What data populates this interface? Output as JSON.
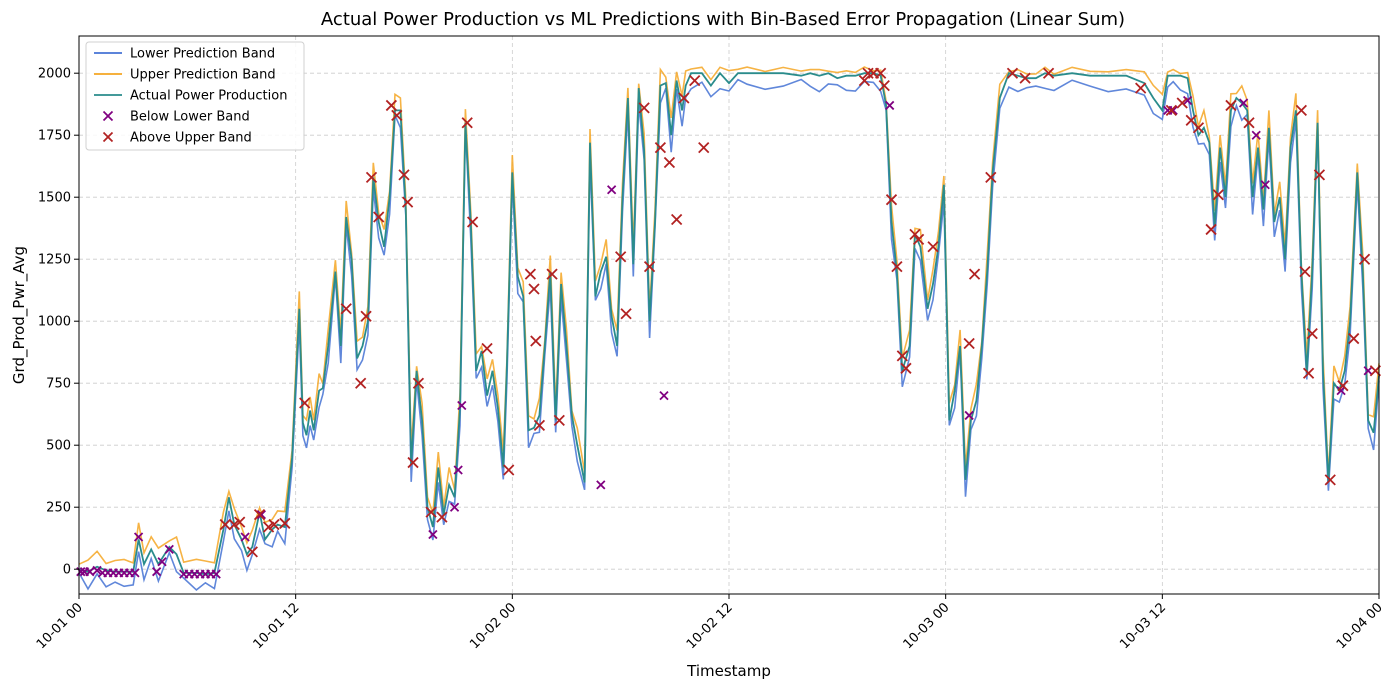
{
  "chart_data": {
    "type": "line",
    "title": "Actual Power Production vs ML Predictions with Bin-Based Error Propagation (Linear Sum)",
    "xlabel": "Timestamp",
    "ylabel": "Grd_Prod_Pwr_Avg",
    "x_unit": "hours since 10-01 00",
    "xlim": [
      0,
      72
    ],
    "ylim": [
      -100,
      2150
    ],
    "x_ticks": [
      {
        "value": 0,
        "label": "10-01 00"
      },
      {
        "value": 12,
        "label": "10-01 12"
      },
      {
        "value": 24,
        "label": "10-02 00"
      },
      {
        "value": 36,
        "label": "10-02 12"
      },
      {
        "value": 48,
        "label": "10-03 00"
      },
      {
        "value": 60,
        "label": "10-03 12"
      },
      {
        "value": 72,
        "label": "10-04 00"
      }
    ],
    "y_ticks": [
      0,
      250,
      500,
      750,
      1000,
      1250,
      1500,
      1750,
      2000
    ],
    "grid": true,
    "legend_position": "top-left",
    "colors": {
      "lower_band": "#4472d4",
      "upper_band": "#f5a623",
      "actual": "#2a8c8c",
      "below_marker": "#800080",
      "above_marker": "#b22222"
    },
    "actual_points": [
      [
        0,
        0
      ],
      [
        0.5,
        -10
      ],
      [
        1,
        10
      ],
      [
        1.5,
        -5
      ],
      [
        2,
        -10
      ],
      [
        2.5,
        -10
      ],
      [
        3,
        -10
      ],
      [
        3.3,
        120
      ],
      [
        3.6,
        20
      ],
      [
        4,
        80
      ],
      [
        4.4,
        20
      ],
      [
        5,
        90
      ],
      [
        5.4,
        60
      ],
      [
        5.8,
        -15
      ],
      [
        6.5,
        -15
      ],
      [
        7,
        -20
      ],
      [
        7.5,
        -15
      ],
      [
        8,
        160
      ],
      [
        8.3,
        290
      ],
      [
        8.6,
        180
      ],
      [
        9,
        120
      ],
      [
        9.3,
        60
      ],
      [
        9.6,
        90
      ],
      [
        10,
        230
      ],
      [
        10.3,
        120
      ],
      [
        10.7,
        160
      ],
      [
        11,
        180
      ],
      [
        11.4,
        170
      ],
      [
        11.8,
        450
      ],
      [
        12.2,
        1050
      ],
      [
        12.4,
        590
      ],
      [
        12.6,
        540
      ],
      [
        12.8,
        640
      ],
      [
        13,
        560
      ],
      [
        13.3,
        720
      ],
      [
        13.5,
        730
      ],
      [
        13.8,
        900
      ],
      [
        14.2,
        1200
      ],
      [
        14.5,
        900
      ],
      [
        14.8,
        1420
      ],
      [
        15.1,
        1250
      ],
      [
        15.4,
        850
      ],
      [
        15.7,
        900
      ],
      [
        16,
        1000
      ],
      [
        16.3,
        1580
      ],
      [
        16.6,
        1400
      ],
      [
        16.9,
        1300
      ],
      [
        17.2,
        1500
      ],
      [
        17.5,
        1850
      ],
      [
        17.8,
        1850
      ],
      [
        18.1,
        1450
      ],
      [
        18.4,
        420
      ],
      [
        18.7,
        800
      ],
      [
        19,
        600
      ],
      [
        19.3,
        250
      ],
      [
        19.6,
        170
      ],
      [
        19.9,
        410
      ],
      [
        20.2,
        220
      ],
      [
        20.5,
        340
      ],
      [
        20.8,
        290
      ],
      [
        21.1,
        650
      ],
      [
        21.4,
        1800
      ],
      [
        21.7,
        1400
      ],
      [
        22,
        800
      ],
      [
        22.3,
        880
      ],
      [
        22.6,
        700
      ],
      [
        22.9,
        800
      ],
      [
        23.2,
        650
      ],
      [
        23.5,
        410
      ],
      [
        23.7,
        820
      ],
      [
        24,
        1600
      ],
      [
        24.3,
        1180
      ],
      [
        24.6,
        1100
      ],
      [
        24.9,
        560
      ],
      [
        25.2,
        570
      ],
      [
        25.5,
        620
      ],
      [
        25.8,
        900
      ],
      [
        26.1,
        1200
      ],
      [
        26.4,
        600
      ],
      [
        26.7,
        1150
      ],
      [
        27,
        900
      ],
      [
        27.3,
        620
      ],
      [
        27.6,
        500
      ],
      [
        28,
        350
      ],
      [
        28.3,
        1720
      ],
      [
        28.6,
        1100
      ],
      [
        28.9,
        1200
      ],
      [
        29.2,
        1260
      ],
      [
        29.5,
        1020
      ],
      [
        29.8,
        900
      ],
      [
        30.1,
        1500
      ],
      [
        30.4,
        1900
      ],
      [
        30.7,
        1230
      ],
      [
        31,
        1940
      ],
      [
        31.3,
        1690
      ],
      [
        31.6,
        1000
      ],
      [
        31.9,
        1400
      ],
      [
        32.2,
        1950
      ],
      [
        32.5,
        1960
      ],
      [
        32.8,
        1750
      ],
      [
        33.1,
        1970
      ],
      [
        33.4,
        1850
      ],
      [
        33.6,
        1950
      ],
      [
        33.9,
        2000
      ],
      [
        34.5,
        2000
      ],
      [
        35,
        1950
      ],
      [
        35.5,
        2000
      ],
      [
        36,
        1960
      ],
      [
        36.5,
        2000
      ],
      [
        37,
        2000
      ],
      [
        38,
        2000
      ],
      [
        39,
        2000
      ],
      [
        40,
        1990
      ],
      [
        40.5,
        2000
      ],
      [
        41,
        1990
      ],
      [
        41.5,
        2000
      ],
      [
        42,
        1980
      ],
      [
        42.5,
        1990
      ],
      [
        43,
        1990
      ],
      [
        43.5,
        2000
      ],
      [
        44,
        2000
      ],
      [
        44.4,
        1990
      ],
      [
        44.7,
        1870
      ],
      [
        45,
        1400
      ],
      [
        45.3,
        1200
      ],
      [
        45.6,
        800
      ],
      [
        46,
        900
      ],
      [
        46.3,
        1350
      ],
      [
        46.6,
        1300
      ],
      [
        47,
        1050
      ],
      [
        47.3,
        1150
      ],
      [
        47.6,
        1300
      ],
      [
        47.9,
        1550
      ],
      [
        48.2,
        600
      ],
      [
        48.5,
        720
      ],
      [
        48.8,
        900
      ],
      [
        49.1,
        360
      ],
      [
        49.4,
        600
      ],
      [
        49.7,
        680
      ],
      [
        50,
        900
      ],
      [
        50.3,
        1200
      ],
      [
        50.6,
        1600
      ],
      [
        51,
        1900
      ],
      [
        51.5,
        2000
      ],
      [
        52,
        1990
      ],
      [
        52.5,
        1980
      ],
      [
        53,
        1980
      ],
      [
        53.5,
        2000
      ],
      [
        54,
        1990
      ],
      [
        55,
        2000
      ],
      [
        56,
        1990
      ],
      [
        57,
        1990
      ],
      [
        58,
        1990
      ],
      [
        59,
        1960
      ],
      [
        59.5,
        1900
      ],
      [
        60,
        1850
      ],
      [
        60.3,
        1990
      ],
      [
        60.6,
        1990
      ],
      [
        61,
        1990
      ],
      [
        61.4,
        1980
      ],
      [
        61.7,
        1850
      ],
      [
        62,
        1750
      ],
      [
        62.3,
        1780
      ],
      [
        62.6,
        1720
      ],
      [
        62.9,
        1380
      ],
      [
        63.2,
        1700
      ],
      [
        63.5,
        1500
      ],
      [
        63.8,
        1850
      ],
      [
        64.1,
        1900
      ],
      [
        64.4,
        1880
      ],
      [
        64.7,
        1850
      ],
      [
        65,
        1500
      ],
      [
        65.3,
        1700
      ],
      [
        65.6,
        1450
      ],
      [
        65.9,
        1780
      ],
      [
        66.2,
        1400
      ],
      [
        66.5,
        1500
      ],
      [
        66.8,
        1250
      ],
      [
        67.1,
        1700
      ],
      [
        67.4,
        1850
      ],
      [
        67.7,
        1200
      ],
      [
        68,
        790
      ],
      [
        68.3,
        1200
      ],
      [
        68.6,
        1800
      ],
      [
        68.9,
        800
      ],
      [
        69.2,
        350
      ],
      [
        69.5,
        750
      ],
      [
        69.8,
        720
      ],
      [
        70.1,
        800
      ],
      [
        70.4,
        1000
      ],
      [
        70.8,
        1600
      ],
      [
        71.1,
        1200
      ],
      [
        71.4,
        600
      ],
      [
        71.7,
        550
      ],
      [
        72,
        780
      ]
    ],
    "below_markers": [
      [
        0.1,
        -10
      ],
      [
        0.3,
        -10
      ],
      [
        0.6,
        -10
      ],
      [
        1,
        -5
      ],
      [
        1.3,
        -15
      ],
      [
        1.6,
        -15
      ],
      [
        1.9,
        -15
      ],
      [
        2.2,
        -15
      ],
      [
        2.5,
        -15
      ],
      [
        2.8,
        -15
      ],
      [
        3.1,
        -15
      ],
      [
        3.3,
        130
      ],
      [
        4.3,
        -10
      ],
      [
        4.6,
        30
      ],
      [
        5,
        80
      ],
      [
        5.8,
        -20
      ],
      [
        6.1,
        -20
      ],
      [
        6.4,
        -20
      ],
      [
        6.7,
        -20
      ],
      [
        7,
        -20
      ],
      [
        7.3,
        -20
      ],
      [
        7.6,
        -20
      ],
      [
        9.2,
        130
      ],
      [
        10.1,
        220
      ],
      [
        19.6,
        140
      ],
      [
        20.8,
        250
      ],
      [
        21.2,
        660
      ],
      [
        21.0,
        400
      ],
      [
        29.5,
        1530
      ],
      [
        28.9,
        340
      ],
      [
        32.4,
        700
      ],
      [
        44.9,
        1870
      ],
      [
        49.3,
        620
      ],
      [
        60.3,
        1850
      ],
      [
        60.6,
        1850
      ],
      [
        61.4,
        1890
      ],
      [
        64.5,
        1880
      ],
      [
        65.2,
        1750
      ],
      [
        65.7,
        1550
      ],
      [
        69.9,
        720
      ],
      [
        71.4,
        800
      ]
    ],
    "above_markers": [
      [
        8.1,
        180
      ],
      [
        8.6,
        180
      ],
      [
        8.9,
        190
      ],
      [
        9.6,
        70
      ],
      [
        10,
        220
      ],
      [
        10.5,
        170
      ],
      [
        10.8,
        180
      ],
      [
        11.4,
        185
      ],
      [
        12.5,
        670
      ],
      [
        14.8,
        1050
      ],
      [
        15.6,
        750
      ],
      [
        15.9,
        1020
      ],
      [
        16.2,
        1580
      ],
      [
        16.6,
        1420
      ],
      [
        17.3,
        1870
      ],
      [
        17.6,
        1830
      ],
      [
        18,
        1590
      ],
      [
        18.2,
        1480
      ],
      [
        18.5,
        430
      ],
      [
        18.8,
        750
      ],
      [
        19.5,
        230
      ],
      [
        20.1,
        210
      ],
      [
        21.5,
        1800
      ],
      [
        21.8,
        1400
      ],
      [
        22.6,
        890
      ],
      [
        23.8,
        400
      ],
      [
        25,
        1190
      ],
      [
        25.2,
        1130
      ],
      [
        25.3,
        920
      ],
      [
        25.5,
        580
      ],
      [
        26.2,
        1190
      ],
      [
        26.6,
        600
      ],
      [
        30,
        1260
      ],
      [
        30.3,
        1030
      ],
      [
        31.3,
        1860
      ],
      [
        31.6,
        1220
      ],
      [
        32.2,
        1700
      ],
      [
        32.7,
        1640
      ],
      [
        33.1,
        1410
      ],
      [
        33.5,
        1900
      ],
      [
        34.1,
        1970
      ],
      [
        34.6,
        1700
      ],
      [
        43.5,
        1970
      ],
      [
        43.7,
        2000
      ],
      [
        44,
        2000
      ],
      [
        44.4,
        2000
      ],
      [
        44.6,
        1950
      ],
      [
        45.0,
        1490
      ],
      [
        45.3,
        1220
      ],
      [
        45.6,
        860
      ],
      [
        45.8,
        810
      ],
      [
        46.3,
        1350
      ],
      [
        46.5,
        1330
      ],
      [
        47.3,
        1300
      ],
      [
        49.3,
        910
      ],
      [
        49.6,
        1190
      ],
      [
        50.5,
        1580
      ],
      [
        51.7,
        2000
      ],
      [
        52.4,
        1980
      ],
      [
        53.7,
        2000
      ],
      [
        58.8,
        1940
      ],
      [
        60.5,
        1850
      ],
      [
        61.1,
        1880
      ],
      [
        61.6,
        1810
      ],
      [
        62.0,
        1780
      ],
      [
        62.7,
        1370
      ],
      [
        63.1,
        1510
      ],
      [
        63.8,
        1870
      ],
      [
        64.8,
        1800
      ],
      [
        67.7,
        1850
      ],
      [
        67.9,
        1200
      ],
      [
        68.3,
        950
      ],
      [
        68.1,
        790
      ],
      [
        68.7,
        1590
      ],
      [
        69.3,
        360
      ],
      [
        70.0,
        740
      ],
      [
        70.6,
        930
      ],
      [
        71.2,
        1250
      ],
      [
        71.8,
        800
      ]
    ],
    "legend": [
      {
        "key": "lower",
        "label": "Lower Prediction Band"
      },
      {
        "key": "upper",
        "label": "Upper Prediction Band"
      },
      {
        "key": "actual",
        "label": "Actual Power Production"
      },
      {
        "key": "below",
        "label": "Below Lower Band"
      },
      {
        "key": "above",
        "label": "Above Upper Band"
      }
    ]
  }
}
